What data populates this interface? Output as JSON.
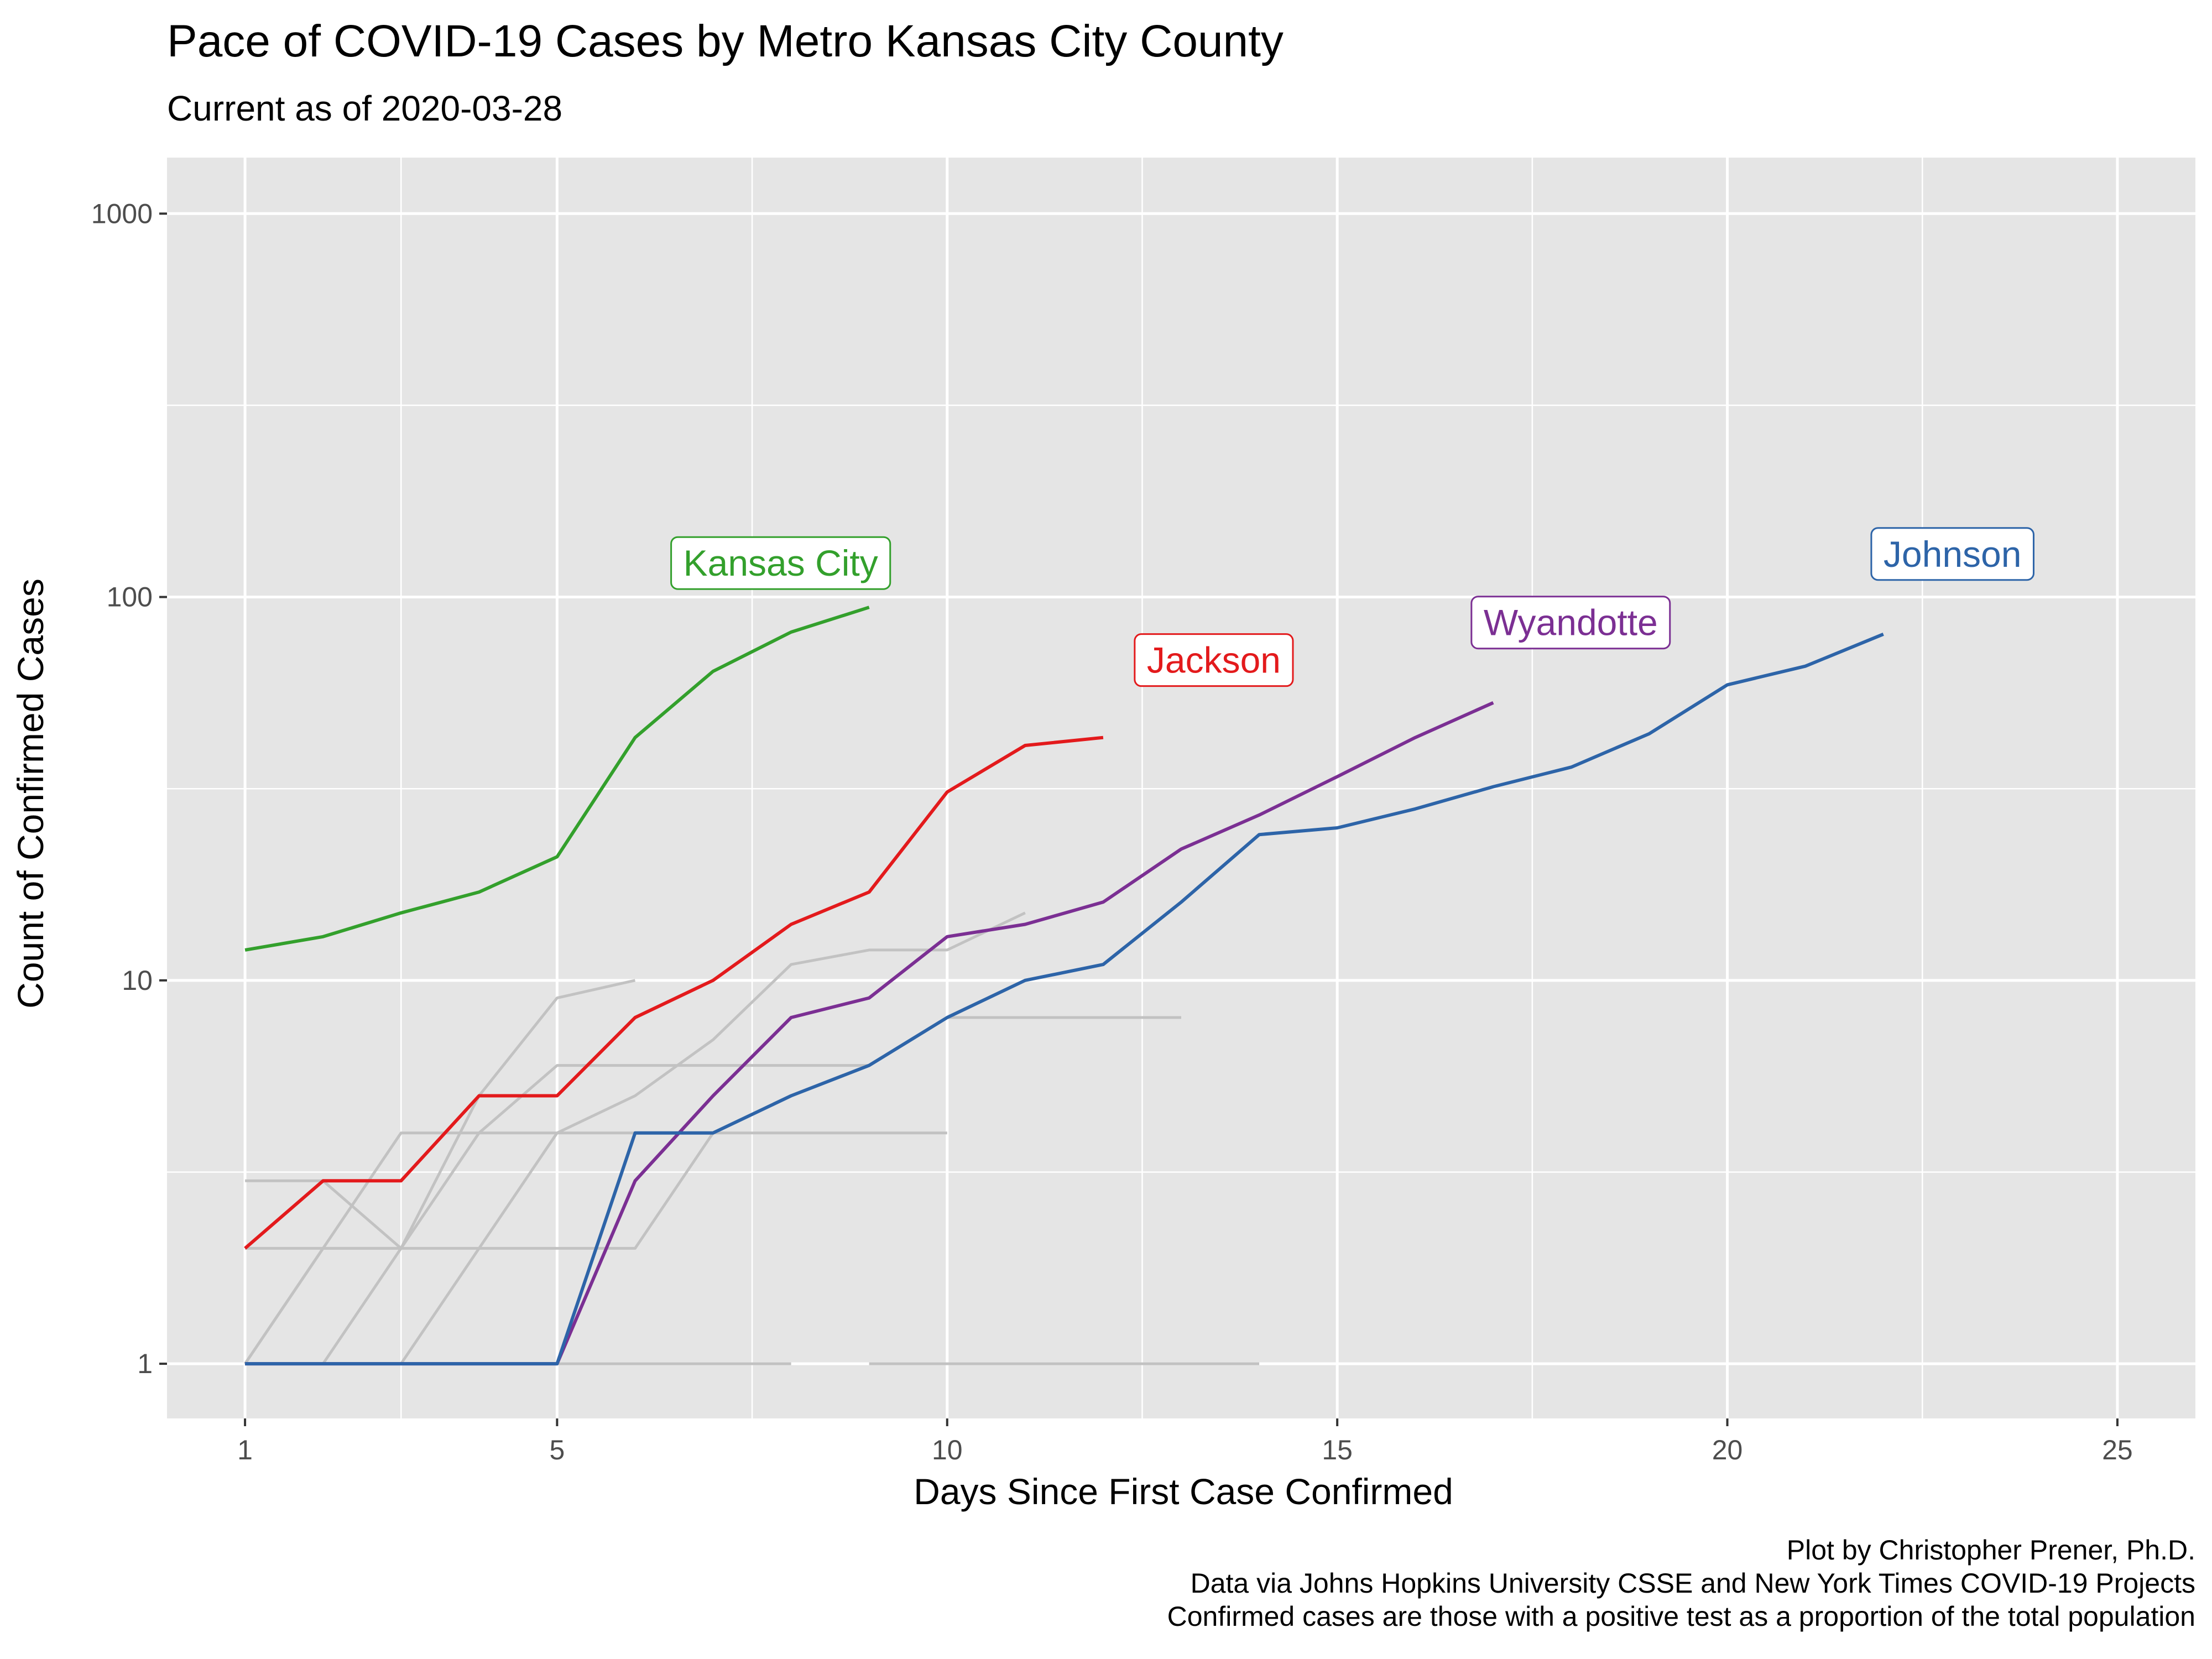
{
  "chart_data": {
    "type": "line",
    "title": "Pace of COVID-19 Cases by Metro Kansas City County",
    "subtitle": "Current as of 2020-03-28",
    "xlabel": "Days Since First Case Confirmed",
    "ylabel": "Count of Confirmed Cases",
    "y_scale": "log10",
    "xlim": [
      0,
      26
    ],
    "ylim": [
      0.72,
      1400
    ],
    "x_ticks": [
      1,
      5,
      10,
      15,
      20,
      25
    ],
    "x_tick_labels": [
      "1",
      "5",
      "10",
      "15",
      "20",
      "25"
    ],
    "y_ticks": [
      1,
      10,
      100,
      1000
    ],
    "y_tick_labels": [
      "1",
      "10",
      "100",
      "1000"
    ],
    "grid": true,
    "legend": "none",
    "colors": {
      "panel": "#e5e5e5",
      "grid": "#ffffff",
      "background_series": "#c2c2c2",
      "kansas_city": "#33a02c",
      "jackson": "#e31a1c",
      "wyandotte": "#7b2f93",
      "johnson": "#2d64a8"
    },
    "caption": [
      "Plot by Christopher Prener, Ph.D.",
      "Data via Johns Hopkins University CSSE and New York Times COVID-19 Projects",
      "Confirmed cases are those with a positive test as a proportion of the total population"
    ],
    "background_series": [
      {
        "x": [
          1,
          2,
          3
        ],
        "y": [
          3,
          3,
          2
        ]
      },
      {
        "x": [
          1,
          2,
          3,
          4,
          5,
          6
        ],
        "y": [
          1,
          2,
          4,
          4,
          4,
          4
        ]
      },
      {
        "x": [
          1,
          2,
          3,
          4,
          5,
          6,
          7,
          8,
          9,
          10
        ],
        "y": [
          2,
          2,
          2,
          2,
          2,
          2,
          4,
          4,
          4,
          4
        ]
      },
      {
        "x": [
          1,
          2,
          3,
          4,
          5,
          6
        ],
        "y": [
          1,
          2,
          2,
          5,
          9,
          10
        ]
      },
      {
        "x": [
          2,
          3,
          4,
          5,
          6,
          7,
          8,
          9
        ],
        "y": [
          1,
          2,
          4,
          6,
          6,
          6,
          6,
          6
        ]
      },
      {
        "x": [
          2,
          3,
          4,
          5,
          6,
          7,
          8,
          9,
          10,
          11
        ],
        "y": [
          1,
          1,
          2,
          4,
          5,
          7,
          11,
          12,
          12,
          15
        ]
      },
      {
        "x": [
          10,
          11,
          12,
          13
        ],
        "y": [
          8,
          8,
          8,
          8
        ]
      },
      {
        "x": [
          1,
          2,
          3,
          4,
          5,
          6,
          7,
          8
        ],
        "y": [
          1,
          1,
          1,
          1,
          1,
          1,
          1,
          1
        ]
      },
      {
        "x": [
          9,
          10,
          11,
          12,
          13,
          14
        ],
        "y": [
          1,
          1,
          1,
          1,
          1,
          1
        ]
      }
    ],
    "series": [
      {
        "name": "Kansas City",
        "color": "#33a02c",
        "x": [
          1,
          2,
          3,
          4,
          5,
          6,
          7,
          8,
          9
        ],
        "y": [
          12,
          13,
          15,
          17,
          21,
          43,
          64,
          81,
          94
        ]
      },
      {
        "name": "Jackson",
        "color": "#e31a1c",
        "x": [
          1,
          2,
          3,
          4,
          5,
          6,
          7,
          8,
          9,
          10,
          11,
          12
        ],
        "y": [
          2,
          3,
          3,
          5,
          5,
          8,
          10,
          14,
          17,
          31,
          41,
          43
        ]
      },
      {
        "name": "Wyandotte",
        "color": "#7b2f93",
        "x": [
          1,
          2,
          3,
          4,
          5,
          6,
          7,
          8,
          9,
          10,
          11,
          12,
          13,
          14,
          15,
          16,
          17
        ],
        "y": [
          1,
          1,
          1,
          1,
          1,
          3,
          5,
          8,
          9,
          13,
          14,
          16,
          22,
          27,
          34,
          43,
          53
        ]
      },
      {
        "name": "Johnson",
        "color": "#2d64a8",
        "x": [
          1,
          2,
          3,
          4,
          5,
          6,
          7,
          8,
          9,
          10,
          11,
          12,
          13,
          14,
          15,
          16,
          17,
          18,
          19,
          20,
          21,
          22
        ],
        "y": [
          1,
          1,
          1,
          1,
          1,
          4,
          4,
          5,
          6,
          8,
          10,
          11,
          16,
          24,
          25,
          28,
          32,
          36,
          44,
          59,
          66,
          80
        ]
      }
    ]
  }
}
